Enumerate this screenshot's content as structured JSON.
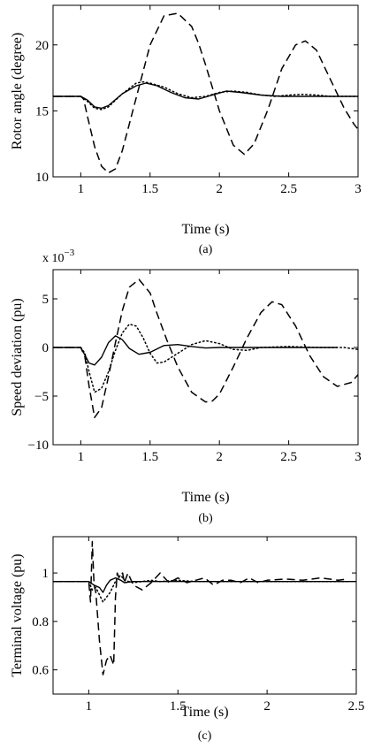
{
  "chart_data": [
    {
      "id": "a",
      "type": "line",
      "xlabel": "Time (s)",
      "ylabel": "Rotor angle (degree)",
      "caption": "(a)",
      "exponent": "",
      "xlim": [
        0.8,
        3
      ],
      "ylim": [
        10,
        23
      ],
      "xticks": [
        1,
        1.5,
        2,
        2.5,
        3
      ],
      "xtick_labels": [
        "1",
        "1.5",
        "2",
        "2.5",
        "3"
      ],
      "yticks": [
        10,
        15,
        20
      ],
      "ytick_labels": [
        "10",
        "15",
        "20"
      ],
      "series": [
        {
          "style": "dashed",
          "x": [
            0.8,
            1.0,
            1.02,
            1.05,
            1.1,
            1.15,
            1.2,
            1.25,
            1.3,
            1.4,
            1.5,
            1.6,
            1.7,
            1.8,
            1.85,
            1.9,
            2.0,
            2.1,
            2.18,
            2.25,
            2.35,
            2.45,
            2.55,
            2.62,
            2.7,
            2.8,
            2.9,
            2.97,
            3.0
          ],
          "y": [
            16.1,
            16.1,
            15.9,
            14.5,
            12.3,
            10.8,
            10.3,
            10.6,
            12.0,
            16.0,
            20.0,
            22.2,
            22.4,
            21.4,
            20.1,
            18.5,
            15.0,
            12.4,
            11.7,
            12.5,
            15.1,
            18.2,
            20.0,
            20.3,
            19.6,
            17.4,
            15.2,
            14.0,
            13.6
          ]
        },
        {
          "style": "dotted",
          "x": [
            0.8,
            1.0,
            1.05,
            1.1,
            1.15,
            1.2,
            1.3,
            1.4,
            1.45,
            1.5,
            1.6,
            1.7,
            1.8,
            1.9,
            2.0,
            2.1,
            2.2,
            2.3,
            2.4,
            2.5,
            2.6,
            2.7,
            2.8,
            2.9,
            3.0
          ],
          "y": [
            16.1,
            16.1,
            15.7,
            15.2,
            15.1,
            15.3,
            16.3,
            17.1,
            17.2,
            17.1,
            16.8,
            16.3,
            16.0,
            16.1,
            16.4,
            16.5,
            16.4,
            16.2,
            16.1,
            16.2,
            16.25,
            16.2,
            16.1,
            16.1,
            16.1
          ]
        },
        {
          "style": "solid",
          "x": [
            0.8,
            1.0,
            1.05,
            1.1,
            1.15,
            1.2,
            1.3,
            1.4,
            1.47,
            1.55,
            1.65,
            1.75,
            1.85,
            1.95,
            2.05,
            2.15,
            2.3,
            2.45,
            2.6,
            2.8,
            3.0
          ],
          "y": [
            16.1,
            16.1,
            15.8,
            15.3,
            15.2,
            15.4,
            16.3,
            16.9,
            17.1,
            16.9,
            16.4,
            16.0,
            15.9,
            16.2,
            16.5,
            16.4,
            16.2,
            16.1,
            16.1,
            16.1,
            16.1
          ]
        }
      ]
    },
    {
      "id": "b",
      "type": "line",
      "xlabel": "Time (s)",
      "ylabel": "Speed deviation (pu)",
      "caption": "(b)",
      "exponent": "x 10",
      "exponent_power": "−3",
      "xlim": [
        0.8,
        3
      ],
      "ylim": [
        -10,
        8
      ],
      "xticks": [
        1,
        1.5,
        2,
        2.5,
        3
      ],
      "xtick_labels": [
        "1",
        "1.5",
        "2",
        "2.5",
        "3"
      ],
      "yticks": [
        -10,
        -5,
        0,
        5
      ],
      "ytick_labels": [
        "−10",
        "−5",
        "0",
        "5"
      ],
      "series": [
        {
          "style": "dashed",
          "x": [
            0.8,
            1.0,
            1.03,
            1.06,
            1.1,
            1.15,
            1.2,
            1.25,
            1.3,
            1.35,
            1.42,
            1.5,
            1.55,
            1.62,
            1.7,
            1.8,
            1.9,
            1.95,
            2.0,
            2.1,
            2.2,
            2.3,
            2.38,
            2.45,
            2.55,
            2.65,
            2.75,
            2.85,
            2.95,
            3.0
          ],
          "y": [
            0,
            0,
            -1.0,
            -4.0,
            -7.2,
            -6.2,
            -3.0,
            0.5,
            3.8,
            6.2,
            7.0,
            5.6,
            3.5,
            0.8,
            -2.0,
            -4.6,
            -5.6,
            -5.5,
            -4.8,
            -2.0,
            1.0,
            3.6,
            4.7,
            4.4,
            2.2,
            -0.8,
            -3.0,
            -4.0,
            -3.6,
            -2.8
          ]
        },
        {
          "style": "dotted",
          "x": [
            0.8,
            1.0,
            1.03,
            1.06,
            1.1,
            1.15,
            1.2,
            1.25,
            1.3,
            1.35,
            1.4,
            1.45,
            1.5,
            1.55,
            1.6,
            1.7,
            1.8,
            1.9,
            2.0,
            2.1,
            2.2,
            2.3,
            2.5,
            2.7,
            2.9,
            3.0
          ],
          "y": [
            0,
            0,
            -0.6,
            -2.5,
            -4.6,
            -4.2,
            -2.5,
            -0.3,
            1.5,
            2.4,
            2.2,
            1.0,
            -0.6,
            -1.6,
            -1.5,
            -0.6,
            0.3,
            0.7,
            0.4,
            -0.2,
            -0.3,
            0,
            0.1,
            0,
            0,
            -0.2
          ]
        },
        {
          "style": "solid",
          "x": [
            0.8,
            1.0,
            1.03,
            1.06,
            1.1,
            1.15,
            1.2,
            1.25,
            1.3,
            1.35,
            1.42,
            1.5,
            1.6,
            1.7,
            1.8,
            1.9,
            2.0,
            2.2,
            2.4,
            2.6,
            2.85
          ],
          "y": [
            0,
            0,
            -0.8,
            -1.6,
            -1.8,
            -1.0,
            0.5,
            1.2,
            0.8,
            -0.1,
            -0.7,
            -0.5,
            0.2,
            0.3,
            0.1,
            -0.05,
            0,
            0,
            0,
            0,
            0
          ]
        }
      ]
    },
    {
      "id": "c",
      "type": "line",
      "xlabel": "Time (s)",
      "ylabel": "Terminal voltage (pu)",
      "caption": "(c)",
      "exponent": "",
      "xlim": [
        0.8,
        2.5
      ],
      "ylim": [
        0.5,
        1.15
      ],
      "xticks": [
        1,
        1.5,
        2,
        2.5
      ],
      "xtick_labels": [
        "1",
        "1.5",
        "2",
        "2.5"
      ],
      "yticks": [
        0.6,
        0.8,
        1.0
      ],
      "ytick_labels": [
        "0.6",
        "0.8",
        "1"
      ],
      "series": [
        {
          "style": "dashed",
          "x": [
            0.8,
            1.0,
            1.01,
            1.02,
            1.03,
            1.04,
            1.06,
            1.08,
            1.1,
            1.12,
            1.14,
            1.15,
            1.16,
            1.17,
            1.19,
            1.2,
            1.22,
            1.25,
            1.3,
            1.35,
            1.4,
            1.45,
            1.5,
            1.55,
            1.6,
            1.65,
            1.7,
            1.75,
            1.8,
            1.85,
            1.9,
            1.95,
            2.0,
            2.1,
            2.2,
            2.3,
            2.4,
            2.45
          ],
          "y": [
            0.965,
            0.965,
            0.88,
            1.13,
            0.95,
            0.92,
            0.72,
            0.58,
            0.64,
            0.66,
            0.62,
            0.9,
            1.0,
            0.98,
            1.0,
            0.96,
            1.0,
            0.95,
            0.93,
            0.96,
            1.0,
            0.96,
            0.98,
            0.96,
            0.97,
            0.98,
            0.95,
            0.97,
            0.97,
            0.96,
            0.98,
            0.96,
            0.97,
            0.975,
            0.97,
            0.98,
            0.97,
            0.975
          ]
        },
        {
          "style": "dotted",
          "x": [
            0.8,
            1.0,
            1.02,
            1.04,
            1.06,
            1.08,
            1.1,
            1.12,
            1.14,
            1.16,
            1.18,
            1.2,
            1.25,
            1.3,
            1.35,
            1.4,
            1.5,
            1.6,
            1.7,
            1.8,
            2.0,
            2.2,
            2.45
          ],
          "y": [
            0.965,
            0.965,
            0.93,
            0.94,
            0.91,
            0.88,
            0.9,
            0.92,
            0.95,
            0.98,
            0.99,
            0.97,
            0.96,
            0.965,
            0.97,
            0.965,
            0.97,
            0.965,
            0.965,
            0.965,
            0.965,
            0.965,
            0.965
          ]
        },
        {
          "style": "solid",
          "x": [
            0.8,
            1.0,
            1.03,
            1.06,
            1.08,
            1.1,
            1.12,
            1.15,
            1.18,
            1.2,
            1.25,
            1.3,
            1.4,
            1.5,
            2.0,
            2.5
          ],
          "y": [
            0.965,
            0.965,
            0.95,
            0.94,
            0.92,
            0.95,
            0.97,
            0.98,
            0.97,
            0.96,
            0.965,
            0.965,
            0.965,
            0.965,
            0.965,
            0.965
          ]
        }
      ]
    }
  ]
}
